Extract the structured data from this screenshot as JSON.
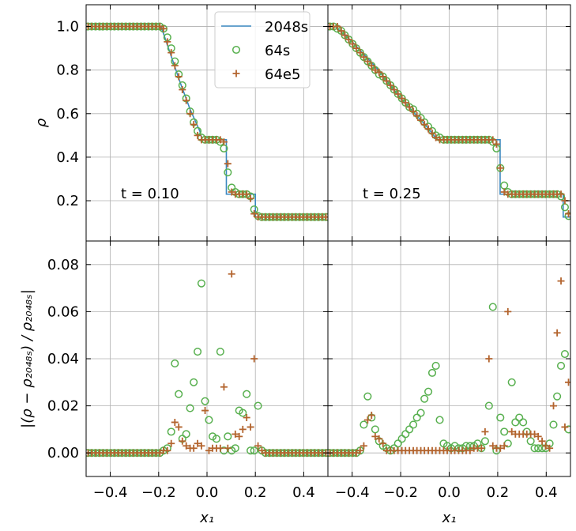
{
  "chart_data": [
    {
      "type": "line",
      "ylabel": "ρ",
      "annotation": "t = 0.10",
      "legend": "upper right",
      "grid": true,
      "xticklabels": false,
      "yticklabels": true,
      "xlim": [
        -0.5,
        0.5
      ],
      "ylim": [
        0.015,
        1.1
      ],
      "xticks": [
        {
          "value": -0.4,
          "label": "−0.4"
        },
        {
          "value": -0.2,
          "label": "−0.2"
        },
        {
          "value": 0,
          "label": "0.0"
        },
        0.2,
        0.4
      ],
      "yticks": [
        0.2,
        0.4,
        0.6,
        0.8,
        {
          "value": 1,
          "label": "1.0"
        }
      ],
      "x": [
        -0.492,
        -0.477,
        -0.461,
        -0.445,
        -0.43,
        -0.414,
        -0.398,
        -0.383,
        -0.367,
        -0.352,
        -0.336,
        -0.32,
        -0.305,
        -0.289,
        -0.273,
        -0.258,
        -0.242,
        -0.227,
        -0.211,
        -0.195,
        -0.18,
        -0.164,
        -0.148,
        -0.133,
        -0.117,
        -0.102,
        -0.086,
        -0.07,
        -0.055,
        -0.039,
        -0.023,
        -0.008,
        0.008,
        0.023,
        0.039,
        0.055,
        0.07,
        0.086,
        0.102,
        0.117,
        0.133,
        0.148,
        0.164,
        0.18,
        0.195,
        0.211,
        0.227,
        0.242,
        0.258,
        0.273,
        0.289,
        0.305,
        0.32,
        0.336,
        0.352,
        0.367,
        0.383,
        0.398,
        0.414,
        0.43,
        0.445,
        0.461,
        0.477,
        0.492
      ],
      "series": [
        {
          "name": "2048s",
          "type": "line",
          "color": "#3a88c0",
          "x": [
            -0.5,
            -0.19,
            -0.15,
            -0.11,
            -0.07,
            -0.03,
            -0.02,
            0.08,
            0.08,
            0.2,
            0.2,
            0.5
          ],
          "values": [
            1,
            1,
            0.87,
            0.74,
            0.62,
            0.52,
            0.48,
            0.48,
            0.23,
            0.23,
            0.125,
            0.125
          ]
        },
        {
          "name": "64s",
          "type": "scatter",
          "marker": "o",
          "color": "#58b04f",
          "values": [
            1,
            1,
            1,
            1,
            1,
            1,
            1,
            1,
            1,
            1,
            1,
            1,
            1,
            1,
            1,
            1,
            1,
            1,
            1,
            1,
            0.99,
            0.95,
            0.9,
            0.84,
            0.78,
            0.73,
            0.67,
            0.61,
            0.56,
            0.52,
            0.49,
            0.48,
            0.48,
            0.48,
            0.48,
            0.47,
            0.44,
            0.33,
            0.26,
            0.24,
            0.23,
            0.23,
            0.23,
            0.22,
            0.16,
            0.13,
            0.125,
            0.125,
            0.125,
            0.125,
            0.125,
            0.125,
            0.125,
            0.125,
            0.125,
            0.125,
            0.125,
            0.125,
            0.125,
            0.125,
            0.125,
            0.125,
            0.125,
            0.125
          ]
        },
        {
          "name": "64e5",
          "type": "scatter",
          "marker": "+",
          "color": "#b3642e",
          "values": [
            1,
            1,
            1,
            1,
            1,
            1,
            1,
            1,
            1,
            1,
            1,
            1,
            1,
            1,
            1,
            1,
            1,
            1,
            1,
            1,
            0.99,
            0.93,
            0.88,
            0.82,
            0.77,
            0.71,
            0.66,
            0.6,
            0.55,
            0.5,
            0.48,
            0.48,
            0.48,
            0.48,
            0.48,
            0.48,
            0.47,
            0.37,
            0.24,
            0.23,
            0.23,
            0.23,
            0.23,
            0.21,
            0.14,
            0.125,
            0.125,
            0.125,
            0.125,
            0.125,
            0.125,
            0.125,
            0.125,
            0.125,
            0.125,
            0.125,
            0.125,
            0.125,
            0.125,
            0.125,
            0.125,
            0.125,
            0.125,
            0.125
          ]
        }
      ]
    },
    {
      "type": "line",
      "annotation": "t = 0.25",
      "grid": true,
      "xticklabels": false,
      "yticklabels": false,
      "xlim": [
        -0.5,
        0.5
      ],
      "ylim": [
        0.015,
        1.1
      ],
      "xticks": [
        -0.4,
        -0.2,
        0,
        0.2,
        0.4
      ],
      "yticks": [
        0.2,
        0.4,
        0.6,
        0.8,
        1
      ],
      "x": [
        -0.492,
        -0.477,
        -0.461,
        -0.445,
        -0.43,
        -0.414,
        -0.398,
        -0.383,
        -0.367,
        -0.352,
        -0.336,
        -0.32,
        -0.305,
        -0.289,
        -0.273,
        -0.258,
        -0.242,
        -0.227,
        -0.211,
        -0.195,
        -0.18,
        -0.164,
        -0.148,
        -0.133,
        -0.117,
        -0.102,
        -0.086,
        -0.07,
        -0.055,
        -0.039,
        -0.023,
        -0.008,
        0.008,
        0.023,
        0.039,
        0.055,
        0.07,
        0.086,
        0.102,
        0.117,
        0.133,
        0.148,
        0.164,
        0.18,
        0.195,
        0.211,
        0.227,
        0.242,
        0.258,
        0.273,
        0.289,
        0.305,
        0.32,
        0.336,
        0.352,
        0.367,
        0.383,
        0.398,
        0.414,
        0.43,
        0.445,
        0.461,
        0.477,
        0.492
      ],
      "series": [
        {
          "type": "line",
          "color": "#3a88c0",
          "x": [
            -0.5,
            -0.47,
            -0.4,
            -0.3,
            -0.2,
            -0.1,
            -0.07,
            -0.05,
            0.21,
            0.21,
            0.47,
            0.47,
            0.5
          ],
          "values": [
            1,
            1,
            0.93,
            0.81,
            0.67,
            0.55,
            0.51,
            0.48,
            0.48,
            0.23,
            0.23,
            0.125,
            0.125
          ]
        },
        {
          "type": "scatter",
          "marker": "o",
          "color": "#58b04f",
          "values": [
            1,
            1,
            0.99,
            0.98,
            0.96,
            0.94,
            0.92,
            0.9,
            0.88,
            0.86,
            0.84,
            0.82,
            0.8,
            0.78,
            0.77,
            0.75,
            0.73,
            0.71,
            0.69,
            0.67,
            0.65,
            0.63,
            0.62,
            0.6,
            0.58,
            0.56,
            0.54,
            0.52,
            0.5,
            0.49,
            0.48,
            0.48,
            0.48,
            0.48,
            0.48,
            0.48,
            0.48,
            0.48,
            0.48,
            0.48,
            0.48,
            0.48,
            0.48,
            0.47,
            0.44,
            0.35,
            0.27,
            0.24,
            0.23,
            0.23,
            0.23,
            0.23,
            0.23,
            0.23,
            0.23,
            0.23,
            0.23,
            0.23,
            0.23,
            0.23,
            0.23,
            0.22,
            0.17,
            0.13
          ]
        },
        {
          "type": "scatter",
          "marker": "+",
          "color": "#b3642e",
          "values": [
            1,
            1,
            1,
            0.98,
            0.96,
            0.94,
            0.92,
            0.9,
            0.88,
            0.86,
            0.84,
            0.82,
            0.8,
            0.79,
            0.77,
            0.75,
            0.73,
            0.71,
            0.69,
            0.67,
            0.65,
            0.63,
            0.61,
            0.59,
            0.57,
            0.55,
            0.53,
            0.51,
            0.49,
            0.48,
            0.48,
            0.48,
            0.48,
            0.48,
            0.48,
            0.48,
            0.48,
            0.48,
            0.48,
            0.48,
            0.48,
            0.48,
            0.48,
            0.48,
            0.46,
            0.35,
            0.24,
            0.23,
            0.23,
            0.23,
            0.23,
            0.23,
            0.23,
            0.23,
            0.23,
            0.23,
            0.23,
            0.23,
            0.23,
            0.23,
            0.23,
            0.23,
            0.2,
            0.14
          ]
        }
      ]
    },
    {
      "type": "line",
      "xlabel": "x₁",
      "ylabel": "|(ρ − ρ₂₀₄₈ₛ) / ρ₂₀₄₈ₛ|",
      "grid": true,
      "xticklabels": true,
      "yticklabels": true,
      "xlim": [
        -0.5,
        0.5
      ],
      "ylim": [
        -0.01,
        0.09
      ],
      "xticks": [
        {
          "value": -0.4,
          "label": "−0.4"
        },
        {
          "value": -0.2,
          "label": "−0.2"
        },
        {
          "value": 0,
          "label": "0.0"
        },
        0.2,
        0.4
      ],
      "yticks": [
        {
          "value": 0,
          "label": "0.00"
        },
        0.02,
        0.04,
        0.06,
        0.08
      ],
      "x": [
        -0.492,
        -0.477,
        -0.461,
        -0.445,
        -0.43,
        -0.414,
        -0.398,
        -0.383,
        -0.367,
        -0.352,
        -0.336,
        -0.32,
        -0.305,
        -0.289,
        -0.273,
        -0.258,
        -0.242,
        -0.227,
        -0.211,
        -0.195,
        -0.18,
        -0.164,
        -0.148,
        -0.133,
        -0.117,
        -0.102,
        -0.086,
        -0.07,
        -0.055,
        -0.039,
        -0.023,
        -0.008,
        0.008,
        0.023,
        0.039,
        0.055,
        0.07,
        0.086,
        0.102,
        0.117,
        0.133,
        0.148,
        0.164,
        0.18,
        0.195,
        0.211,
        0.227,
        0.242,
        0.258,
        0.273,
        0.289,
        0.305,
        0.32,
        0.336,
        0.352,
        0.367,
        0.383,
        0.398,
        0.414,
        0.43,
        0.445,
        0.461,
        0.477,
        0.492
      ],
      "series": [
        {
          "type": "scatter",
          "marker": "o",
          "color": "#58b04f",
          "values": [
            0,
            0,
            0,
            0,
            0,
            0,
            0,
            0,
            0,
            0,
            0,
            0,
            0,
            0,
            0,
            0,
            0,
            0,
            0,
            0,
            0.001,
            0.002,
            0.009,
            0.038,
            0.025,
            0.006,
            0.008,
            0.019,
            0.03,
            0.043,
            0.072,
            0.022,
            0.014,
            0.007,
            0.006,
            0.043,
            0.001,
            0.007,
            0.001,
            0.002,
            0.018,
            0.017,
            0.025,
            0.001,
            0.001,
            0.02,
            0.001,
            0,
            0,
            0,
            0,
            0,
            0,
            0,
            0,
            0,
            0,
            0,
            0,
            0,
            0,
            0,
            0,
            0
          ]
        },
        {
          "type": "scatter",
          "marker": "+",
          "color": "#b3642e",
          "values": [
            0,
            0,
            0,
            0,
            0,
            0,
            0,
            0,
            0,
            0,
            0,
            0,
            0,
            0,
            0,
            0,
            0,
            0,
            0,
            0,
            0.001,
            0.001,
            0.004,
            0.013,
            0.011,
            0.005,
            0.003,
            0.002,
            0.002,
            0.004,
            0.003,
            0.018,
            0.001,
            0.002,
            0.002,
            0.002,
            0.028,
            0.002,
            0.076,
            0.008,
            0.007,
            0.01,
            0.015,
            0.011,
            0.04,
            0.003,
            0.001,
            0,
            0,
            0,
            0,
            0,
            0,
            0,
            0,
            0,
            0,
            0,
            0,
            0,
            0,
            0,
            0,
            0
          ]
        }
      ]
    },
    {
      "type": "line",
      "xlabel": "x₁",
      "grid": true,
      "xticklabels": true,
      "yticklabels": false,
      "xlim": [
        -0.5,
        0.5
      ],
      "ylim": [
        -0.01,
        0.09
      ],
      "xticks": [
        {
          "value": -0.4,
          "label": "−0.4"
        },
        {
          "value": -0.2,
          "label": "−0.2"
        },
        {
          "value": 0,
          "label": "0.0"
        },
        0.2,
        0.4
      ],
      "yticks": [
        0,
        0.02,
        0.04,
        0.06,
        0.08
      ],
      "x": [
        -0.492,
        -0.477,
        -0.461,
        -0.445,
        -0.43,
        -0.414,
        -0.398,
        -0.383,
        -0.367,
        -0.352,
        -0.336,
        -0.32,
        -0.305,
        -0.289,
        -0.273,
        -0.258,
        -0.242,
        -0.227,
        -0.211,
        -0.195,
        -0.18,
        -0.164,
        -0.148,
        -0.133,
        -0.117,
        -0.102,
        -0.086,
        -0.07,
        -0.055,
        -0.039,
        -0.023,
        -0.008,
        0.008,
        0.023,
        0.039,
        0.055,
        0.07,
        0.086,
        0.102,
        0.117,
        0.133,
        0.148,
        0.164,
        0.18,
        0.195,
        0.211,
        0.227,
        0.242,
        0.258,
        0.273,
        0.289,
        0.305,
        0.32,
        0.336,
        0.352,
        0.367,
        0.383,
        0.398,
        0.414,
        0.43,
        0.445,
        0.461,
        0.477,
        0.492
      ],
      "series": [
        {
          "type": "scatter",
          "marker": "o",
          "color": "#58b04f",
          "values": [
            0,
            0,
            0,
            0,
            0,
            0,
            0,
            0,
            0.001,
            0.012,
            0.024,
            0.015,
            0.01,
            0.005,
            0.003,
            0.002,
            0.001,
            0.002,
            0.004,
            0.006,
            0.008,
            0.01,
            0.012,
            0.015,
            0.017,
            0.023,
            0.026,
            0.034,
            0.037,
            0.014,
            0.004,
            0.003,
            0.002,
            0.003,
            0.002,
            0.002,
            0.003,
            0.003,
            0.003,
            0.004,
            0.002,
            0.005,
            0.02,
            0.062,
            0.001,
            0.015,
            0.009,
            0.004,
            0.03,
            0.013,
            0.015,
            0.013,
            0.009,
            0.005,
            0.002,
            0.002,
            0.002,
            0.002,
            0.004,
            0.012,
            0.024,
            0.037,
            0.042,
            0.01
          ]
        },
        {
          "type": "scatter",
          "marker": "+",
          "color": "#b3642e",
          "values": [
            0,
            0,
            0,
            0,
            0,
            0,
            0,
            0,
            0.001,
            0.003,
            0.014,
            0.016,
            0.007,
            0.006,
            0.004,
            0.001,
            0.001,
            0.001,
            0.001,
            0.001,
            0.001,
            0.001,
            0.001,
            0.001,
            0.001,
            0.001,
            0.001,
            0.001,
            0.001,
            0.001,
            0.001,
            0.001,
            0.001,
            0.001,
            0.001,
            0.001,
            0.001,
            0.001,
            0.002,
            0.002,
            0.002,
            0.009,
            0.04,
            0.003,
            0.002,
            0.002,
            0.003,
            0.06,
            0.009,
            0.008,
            0.008,
            0.008,
            0.008,
            0.008,
            0.008,
            0.007,
            0.005,
            0.003,
            0.002,
            0.02,
            0.051,
            0.073,
            0.011,
            0.03
          ]
        }
      ]
    }
  ]
}
